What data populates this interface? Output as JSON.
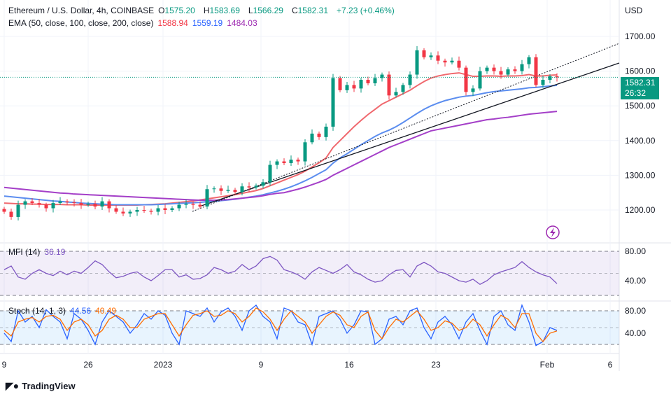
{
  "header": {
    "symbol": "Ethereum / U.S. Dollar, 4h, COINBASE",
    "open_label": "O",
    "open": "1575.20",
    "high_label": "H",
    "high": "1583.69",
    "low_label": "L",
    "low": "1566.29",
    "close_label": "C",
    "close": "1582.31",
    "change": "+7.23 (+0.46%)",
    "ema_label": "EMA (50, close, 100, close, 200, close)",
    "ema50": "1588.94",
    "ema100": "1559.19",
    "ema200": "1484.03"
  },
  "currency": "USD",
  "last_price": "1582.31",
  "countdown": "26:32",
  "brand": "TradingView",
  "colors": {
    "up": "#089981",
    "down": "#f23645",
    "ema50": "#f0686e",
    "ema100": "#5b8def",
    "ema200": "#a43fc8",
    "mfi": "#7e57c2",
    "stoch_k": "#2962ff",
    "stoch_d": "#ff6d00"
  },
  "chart_data": [
    {
      "type": "candlestick",
      "title": "Ethereum / U.S. Dollar, 4h, COINBASE",
      "y_ticks": [
        "1700.00",
        "1600.00",
        "1500.00",
        "1400.00",
        "1300.00",
        "1200.00"
      ],
      "ylim": [
        1130,
        1730
      ],
      "x_ticks": [
        "9",
        "26",
        "2023",
        "9",
        "16",
        "23",
        "Feb",
        "6"
      ],
      "close": [
        1195,
        1180,
        1215,
        1225,
        1220,
        1215,
        1205,
        1220,
        1225,
        1222,
        1220,
        1215,
        1218,
        1210,
        1225,
        1205,
        1195,
        1190,
        1195,
        1200,
        1198,
        1195,
        1205,
        1200,
        1205,
        1215,
        1218,
        1215,
        1210,
        1260,
        1262,
        1255,
        1258,
        1252,
        1268,
        1265,
        1270,
        1280,
        1330,
        1340,
        1335,
        1345,
        1340,
        1395,
        1420,
        1410,
        1440,
        1580,
        1545,
        1560,
        1550,
        1575,
        1565,
        1580,
        1590,
        1530,
        1540,
        1560,
        1590,
        1660,
        1640,
        1645,
        1630,
        1625,
        1630,
        1610,
        1540,
        1550,
        1600,
        1610,
        1600,
        1590,
        1605,
        1600,
        1620,
        1640,
        1560,
        1575,
        1585,
        1582
      ],
      "series": [
        {
          "name": "EMA 50",
          "values": [
            1220,
            1219,
            1218,
            1218,
            1217,
            1217,
            1216,
            1216,
            1216,
            1215,
            1215,
            1215,
            1214,
            1214,
            1214,
            1214,
            1214,
            1214,
            1214,
            1214,
            1215,
            1216,
            1217,
            1218,
            1220,
            1222,
            1224,
            1226,
            1229,
            1232,
            1235,
            1238,
            1241,
            1244,
            1248,
            1252,
            1256,
            1262,
            1270,
            1278,
            1286,
            1294,
            1302,
            1312,
            1324,
            1336,
            1350,
            1380,
            1400,
            1420,
            1440,
            1458,
            1475,
            1490,
            1505,
            1515,
            1525,
            1535,
            1545,
            1558,
            1570,
            1580,
            1586,
            1590,
            1593,
            1595,
            1590,
            1585,
            1585,
            1586,
            1586,
            1585,
            1586,
            1586,
            1587,
            1590,
            1586,
            1586,
            1588,
            1589
          ]
        },
        {
          "name": "EMA 100",
          "values": [
            1240,
            1238,
            1236,
            1234,
            1232,
            1230,
            1228,
            1226,
            1225,
            1223,
            1222,
            1220,
            1219,
            1218,
            1217,
            1216,
            1215,
            1215,
            1215,
            1215,
            1215,
            1215,
            1216,
            1217,
            1218,
            1219,
            1220,
            1221,
            1222,
            1224,
            1225,
            1227,
            1229,
            1231,
            1234,
            1237,
            1240,
            1244,
            1249,
            1254,
            1260,
            1267,
            1275,
            1284,
            1294,
            1305,
            1316,
            1335,
            1350,
            1362,
            1375,
            1388,
            1400,
            1412,
            1422,
            1430,
            1440,
            1452,
            1465,
            1478,
            1490,
            1500,
            1508,
            1515,
            1520,
            1525,
            1528,
            1530,
            1534,
            1538,
            1541,
            1543,
            1545,
            1547,
            1549,
            1552,
            1553,
            1555,
            1557,
            1559
          ]
        },
        {
          "name": "EMA 200",
          "values": [
            1265,
            1263,
            1261,
            1259,
            1257,
            1255,
            1253,
            1251,
            1249,
            1248,
            1246,
            1245,
            1244,
            1243,
            1242,
            1241,
            1240,
            1239,
            1238,
            1237,
            1236,
            1235,
            1234,
            1233,
            1232,
            1231,
            1230,
            1229,
            1228,
            1228,
            1228,
            1229,
            1230,
            1232,
            1234,
            1236,
            1238,
            1241,
            1245,
            1248,
            1250,
            1255,
            1260,
            1266,
            1273,
            1280,
            1288,
            1300,
            1310,
            1320,
            1330,
            1340,
            1350,
            1360,
            1370,
            1380,
            1388,
            1396,
            1404,
            1412,
            1420,
            1428,
            1432,
            1436,
            1440,
            1444,
            1448,
            1452,
            1456,
            1460,
            1462,
            1465,
            1467,
            1470,
            1473,
            1476,
            1478,
            1480,
            1482,
            1484
          ]
        }
      ]
    },
    {
      "type": "line",
      "title": "MFI (14)",
      "value_label": "36.19",
      "y_ticks": [
        "80.00",
        "40.00"
      ],
      "ylim": [
        20,
        80
      ],
      "bands": [
        80,
        50,
        20
      ],
      "values": [
        55,
        60,
        45,
        42,
        50,
        55,
        50,
        47,
        53,
        48,
        53,
        50,
        58,
        67,
        62,
        52,
        44,
        46,
        50,
        52,
        45,
        40,
        47,
        55,
        55,
        45,
        48,
        42,
        43,
        48,
        58,
        55,
        50,
        53,
        62,
        55,
        60,
        70,
        73,
        68,
        55,
        52,
        48,
        42,
        52,
        58,
        54,
        50,
        55,
        62,
        52,
        48,
        42,
        38,
        40,
        48,
        54,
        55,
        45,
        60,
        65,
        60,
        52,
        50,
        45,
        40,
        38,
        42,
        35,
        40,
        48,
        52,
        55,
        58,
        66,
        58,
        52,
        48,
        45,
        36
      ]
    },
    {
      "type": "line",
      "title": "Stoch (14, 1, 3)",
      "k_label": "44.56",
      "d_label": "40.49",
      "y_ticks": [
        "80.00",
        "40.00"
      ],
      "ylim": [
        0,
        100
      ],
      "bands": [
        80,
        50,
        20
      ],
      "series": [
        {
          "name": "K",
          "values": [
            40,
            25,
            80,
            60,
            70,
            50,
            82,
            70,
            60,
            30,
            75,
            65,
            45,
            20,
            60,
            80,
            70,
            60,
            40,
            55,
            75,
            65,
            80,
            72,
            40,
            20,
            80,
            75,
            70,
            85,
            60,
            78,
            85,
            70,
            45,
            80,
            90,
            70,
            60,
            30,
            85,
            80,
            60,
            55,
            20,
            70,
            75,
            80,
            65,
            40,
            55,
            80,
            78,
            20,
            30,
            65,
            70,
            55,
            80,
            85,
            50,
            30,
            60,
            70,
            55,
            30,
            60,
            75,
            45,
            20,
            70,
            80,
            55,
            45,
            90,
            60,
            18,
            25,
            50,
            45
          ]
        },
        {
          "name": "D",
          "values": [
            45,
            35,
            60,
            65,
            68,
            60,
            70,
            72,
            65,
            45,
            60,
            65,
            55,
            35,
            45,
            65,
            72,
            65,
            50,
            50,
            65,
            70,
            75,
            75,
            55,
            35,
            55,
            72,
            75,
            80,
            70,
            72,
            80,
            75,
            60,
            70,
            85,
            78,
            65,
            45,
            65,
            80,
            70,
            60,
            40,
            55,
            70,
            78,
            72,
            55,
            50,
            70,
            78,
            45,
            30,
            50,
            65,
            60,
            70,
            80,
            65,
            45,
            50,
            62,
            58,
            45,
            50,
            65,
            55,
            35,
            55,
            72,
            65,
            50,
            75,
            75,
            40,
            25,
            40,
            44
          ]
        }
      ]
    }
  ]
}
